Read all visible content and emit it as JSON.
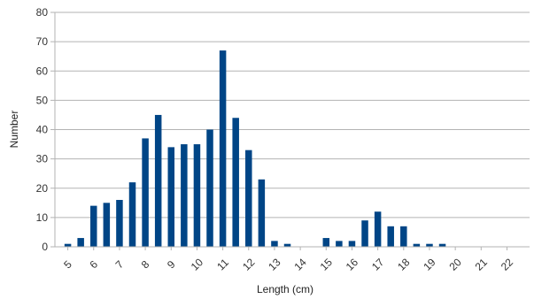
{
  "chart_data": {
    "type": "bar",
    "title": "",
    "xlabel": "Length (cm)",
    "ylabel": "Number",
    "ylim": [
      0,
      80
    ],
    "yticks": [
      0,
      10,
      20,
      30,
      40,
      50,
      60,
      70,
      80
    ],
    "xlim": [
      5,
      22.5
    ],
    "xticks": [
      "5",
      "6",
      "7",
      "8",
      "9",
      "10",
      "11",
      "12",
      "13",
      "14",
      "15",
      "16",
      "17",
      "18",
      "19",
      "20",
      "21",
      "22"
    ],
    "grid": "horizontal",
    "bar_color": "#004586",
    "x": [
      5,
      5.5,
      6,
      6.5,
      7,
      7.5,
      8,
      8.5,
      9,
      9.5,
      10,
      10.5,
      11,
      11.5,
      12,
      12.5,
      13,
      13.5,
      14,
      14.5,
      15,
      15.5,
      16,
      16.5,
      17,
      17.5,
      18,
      18.5,
      19,
      19.5,
      20,
      20.5,
      21,
      21.5,
      22
    ],
    "values": [
      1,
      3,
      14,
      15,
      16,
      22,
      37,
      45,
      34,
      35,
      35,
      40,
      67,
      44,
      33,
      23,
      2,
      1,
      0,
      0,
      3,
      2,
      2,
      9,
      12,
      7,
      7,
      1,
      1,
      1,
      0,
      0,
      0,
      0,
      0
    ]
  }
}
